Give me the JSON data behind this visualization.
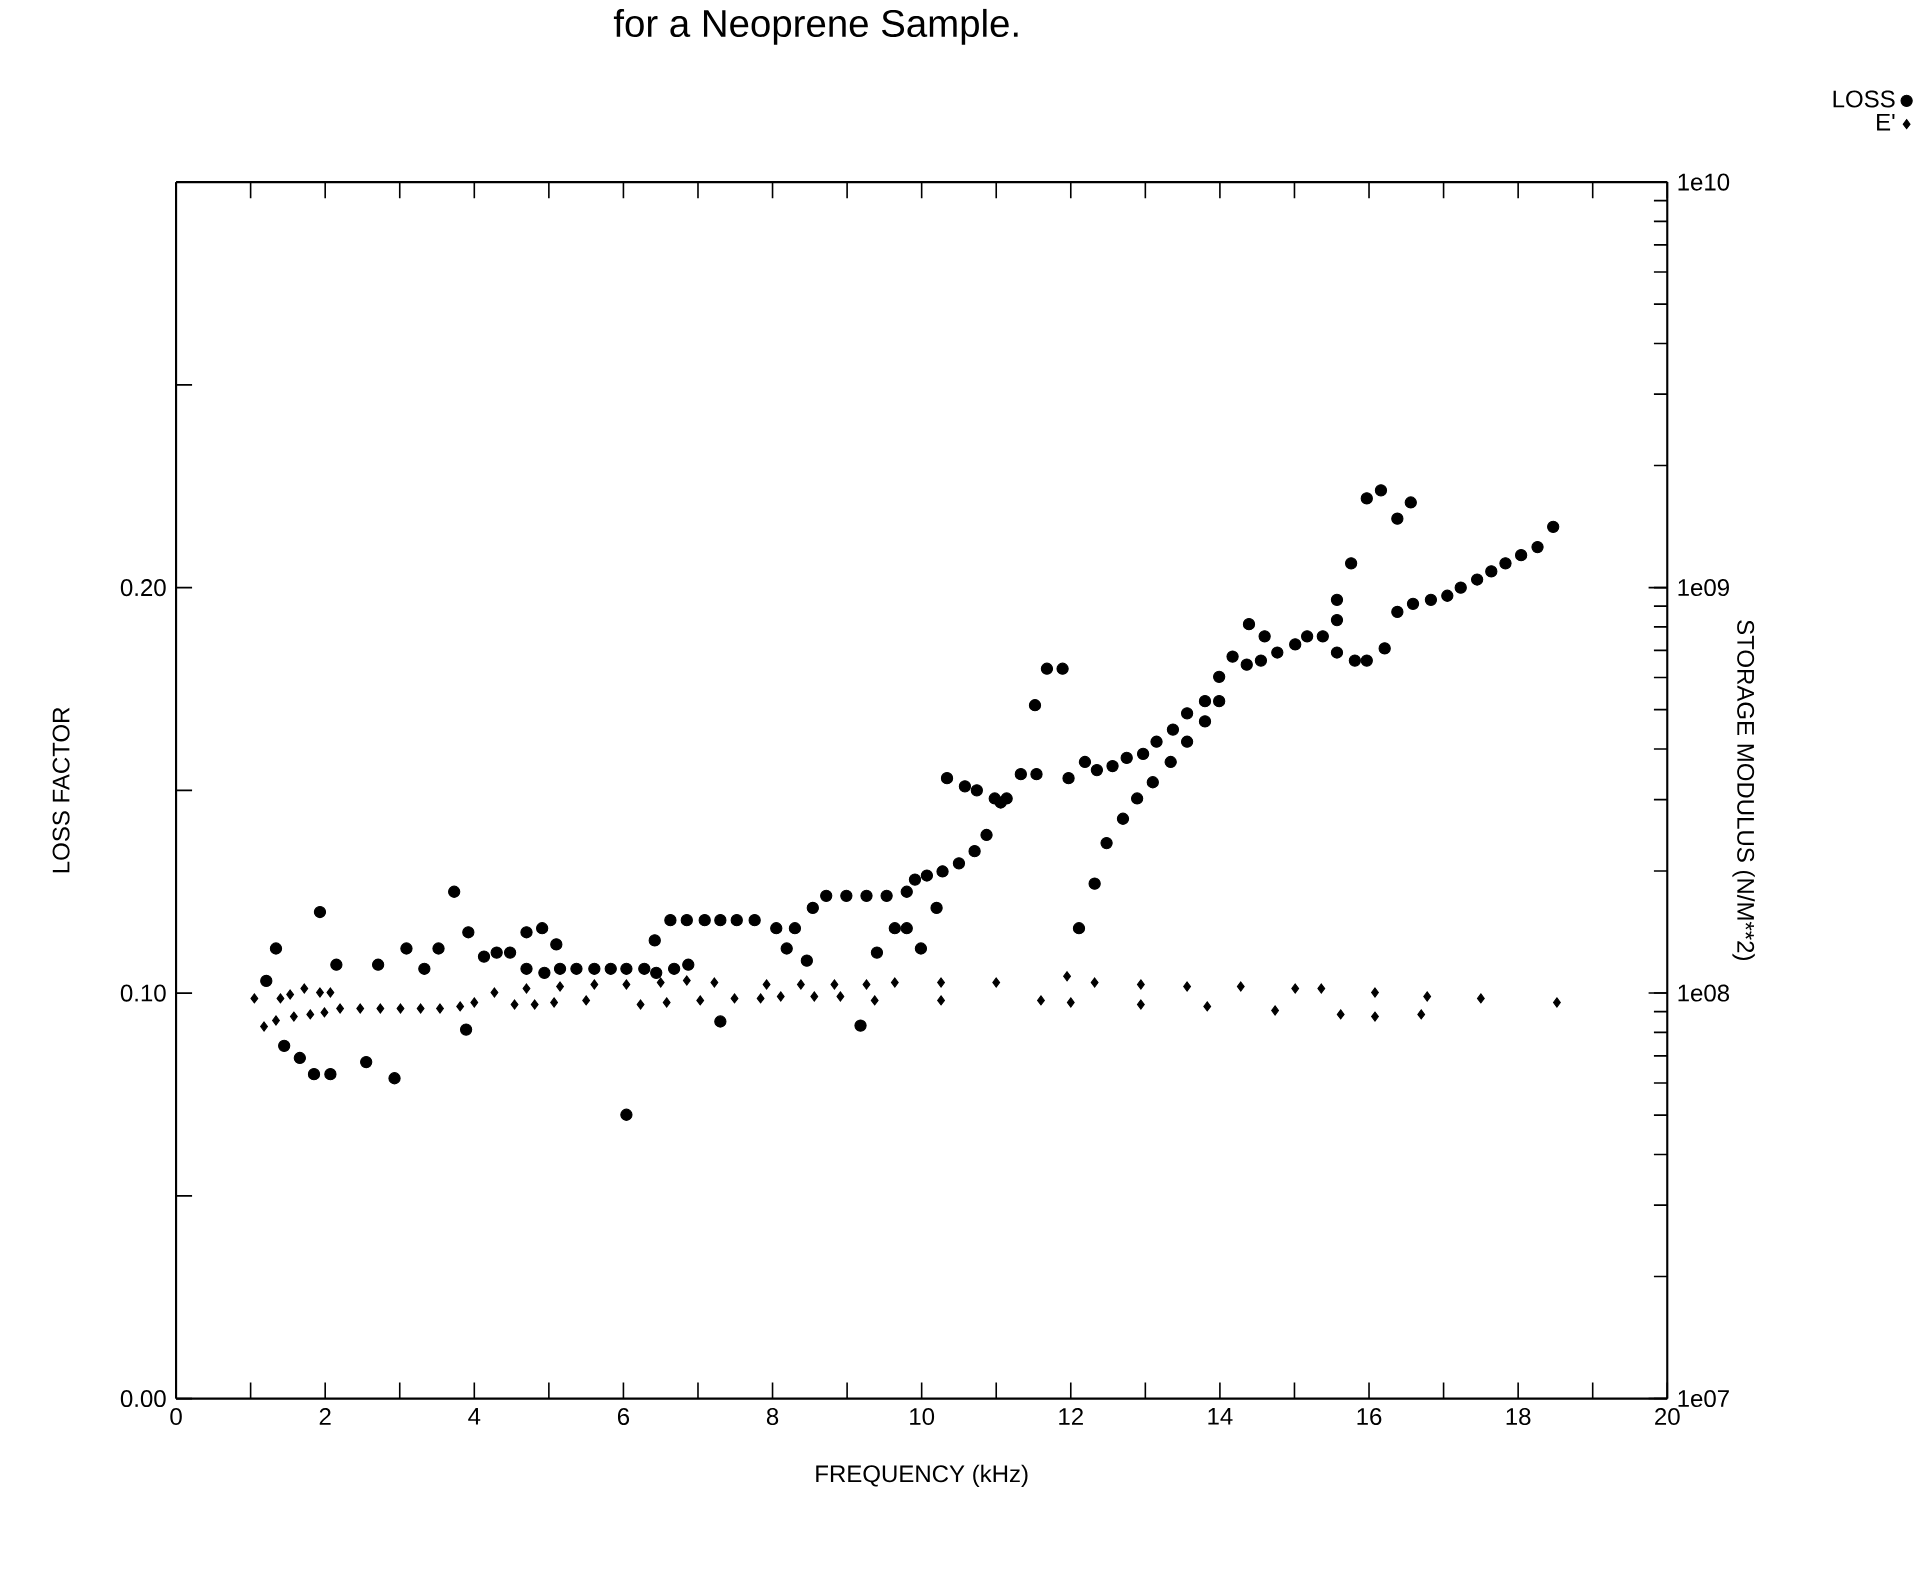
{
  "chart_data": {
    "type": "scatter",
    "title": "for a Neoprene Sample.",
    "xlabel": "FREQUENCY (kHz)",
    "ylabel": "LOSS FACTOR",
    "y2label": "STORAGE MODULUS (N/M**2)",
    "legend": "top right",
    "log": "y2",
    "xlim": [
      0,
      20
    ],
    "xticks": [
      0,
      {
        "value": 1,
        "label": null
      },
      2,
      {
        "value": 3,
        "label": null
      },
      4,
      {
        "value": 5,
        "label": null
      },
      6,
      {
        "value": 7,
        "label": null
      },
      8,
      {
        "value": 9,
        "label": null
      },
      10,
      {
        "value": 11,
        "label": null
      },
      12,
      {
        "value": 13,
        "label": null
      },
      14,
      {
        "value": 15,
        "label": null
      },
      16,
      {
        "value": 17,
        "label": null
      },
      18,
      {
        "value": 19,
        "label": null
      },
      20
    ],
    "ylim": [
      0,
      0.3
    ],
    "yticks": [
      {
        "value": 0,
        "label": "0.00"
      },
      {
        "value": 0.05,
        "label": null
      },
      {
        "value": 0.1,
        "label": "0.10"
      },
      {
        "value": 0.15,
        "label": null
      },
      {
        "value": 0.2,
        "label": "0.20"
      },
      {
        "value": 0.25,
        "label": null
      }
    ],
    "y2lim": [
      10000000,
      10000000000
    ],
    "y2ticks": [
      {
        "value": 10000000,
        "label": "1e07"
      },
      {
        "value": 100000000,
        "label": "1e08"
      },
      {
        "value": 1000000000,
        "label": "1e09"
      },
      {
        "value": 10000000000,
        "label": "1e10"
      }
    ],
    "series": [
      {
        "name": "LOSS",
        "color": "#000000",
        "marker": "circle",
        "axis": "y",
        "x": [
          1.21,
          1.34,
          1.45,
          1.66,
          1.85,
          2.07,
          1.93,
          2.15,
          2.55,
          2.71,
          2.93,
          3.09,
          3.33,
          3.52,
          3.73,
          3.92,
          3.89,
          4.13,
          4.3,
          4.48,
          4.7,
          4.91,
          5.1,
          4.7,
          4.94,
          5.15,
          5.37,
          5.61,
          5.83,
          6.04,
          6.28,
          6.44,
          6.68,
          6.87,
          6.04,
          6.42,
          6.63,
          6.85,
          7.09,
          7.3,
          7.52,
          7.76,
          8.05,
          8.3,
          8.19,
          8.46,
          7.3,
          8.54,
          8.72,
          8.99,
          9.26,
          9.53,
          9.8,
          9.4,
          9.18,
          9.64,
          9.8,
          9.99,
          10.2,
          9.91,
          10.07,
          10.28,
          10.5,
          10.71,
          10.87,
          11.06,
          11.14,
          10.98,
          10.74,
          10.58,
          10.34,
          11.33,
          11.54,
          11.52,
          11.68,
          11.89,
          11.97,
          12.19,
          12.35,
          12.56,
          12.75,
          12.97,
          13.15,
          13.37,
          13.56,
          13.8,
          13.99,
          13.99,
          14.17,
          14.36,
          14.55,
          14.77,
          15.01,
          15.17,
          15.38,
          14.39,
          14.6,
          12.11,
          12.32,
          12.48,
          12.7,
          12.89,
          13.1,
          13.34,
          13.56,
          13.8,
          15.57,
          15.57,
          15.76,
          15.57,
          15.81,
          15.97,
          16.21,
          15.97,
          16.16,
          16.38,
          16.56,
          16.38,
          16.59,
          16.83,
          17.05,
          17.23,
          17.45,
          17.64,
          17.83,
          18.04,
          18.26,
          18.47
        ],
        "values": [
          0.103,
          0.111,
          0.087,
          0.084,
          0.08,
          0.08,
          0.12,
          0.107,
          0.083,
          0.107,
          0.079,
          0.111,
          0.106,
          0.111,
          0.125,
          0.115,
          0.091,
          0.109,
          0.11,
          0.11,
          0.115,
          0.116,
          0.112,
          0.106,
          0.105,
          0.106,
          0.106,
          0.106,
          0.106,
          0.106,
          0.106,
          0.105,
          0.106,
          0.107,
          0.07,
          0.113,
          0.118,
          0.118,
          0.118,
          0.118,
          0.118,
          0.118,
          0.116,
          0.116,
          0.111,
          0.108,
          0.093,
          0.121,
          0.124,
          0.124,
          0.124,
          0.124,
          0.125,
          0.11,
          0.092,
          0.116,
          0.116,
          0.111,
          0.121,
          0.128,
          0.129,
          0.13,
          0.132,
          0.135,
          0.139,
          0.147,
          0.148,
          0.148,
          0.15,
          0.151,
          0.153,
          0.154,
          0.154,
          0.171,
          0.18,
          0.18,
          0.153,
          0.157,
          0.155,
          0.156,
          0.158,
          0.159,
          0.162,
          0.165,
          0.169,
          0.172,
          0.172,
          0.178,
          0.183,
          0.181,
          0.182,
          0.184,
          0.186,
          0.188,
          0.188,
          0.191,
          0.188,
          0.116,
          0.127,
          0.137,
          0.143,
          0.148,
          0.152,
          0.157,
          0.162,
          0.167,
          0.197,
          0.192,
          0.206,
          0.184,
          0.182,
          0.182,
          0.185,
          0.222,
          0.224,
          0.217,
          0.221,
          0.194,
          0.196,
          0.197,
          0.198,
          0.2,
          0.202,
          0.204,
          0.206,
          0.208,
          0.21,
          0.215
        ]
      },
      {
        "name": "E'",
        "color": "#000000",
        "marker": "diamond",
        "axis": "y2",
        "x": [
          1.05,
          1.4,
          1.53,
          1.72,
          1.93,
          2.07,
          4.27,
          4.7,
          5.15,
          5.61,
          6.04,
          6.5,
          6.85,
          7.22,
          7.92,
          8.38,
          8.83,
          9.26,
          9.64,
          10.26,
          11.0,
          11.95,
          12.32,
          12.94,
          13.56,
          14.28,
          15.01,
          15.36,
          16.08,
          16.78,
          17.5,
          18.52,
          1.18,
          1.34,
          1.58,
          1.8,
          1.99,
          2.2,
          2.47,
          2.74,
          3.01,
          3.28,
          3.54,
          3.81,
          4.0,
          4.54,
          4.81,
          5.07,
          5.5,
          6.23,
          6.58,
          7.03,
          7.49,
          7.84,
          8.11,
          8.56,
          8.91,
          9.37,
          10.26,
          11.6,
          12.0,
          12.94,
          13.83,
          14.74,
          15.62,
          16.08,
          16.7
        ],
        "values": [
          97000000,
          97000000,
          99200000,
          102600000,
          100300000,
          100300000,
          100300000,
          102600000,
          103800000,
          105000000,
          105000000,
          106200000,
          107400000,
          106200000,
          105000000,
          105000000,
          105000000,
          105000000,
          106200000,
          106200000,
          106200000,
          110000000,
          106200000,
          105000000,
          103800000,
          103800000,
          102600000,
          102600000,
          100300000,
          98100000,
          97000000,
          94800000,
          82700000,
          85600000,
          87500000,
          88600000,
          89600000,
          91600000,
          91600000,
          91600000,
          91600000,
          91600000,
          91600000,
          92700000,
          94800000,
          93700000,
          93700000,
          94800000,
          95900000,
          93700000,
          94800000,
          95900000,
          97000000,
          97000000,
          98100000,
          98100000,
          98100000,
          95900000,
          95900000,
          95900000,
          94800000,
          93700000,
          92700000,
          90600000,
          88600000,
          87500000,
          88600000
        ]
      }
    ]
  }
}
